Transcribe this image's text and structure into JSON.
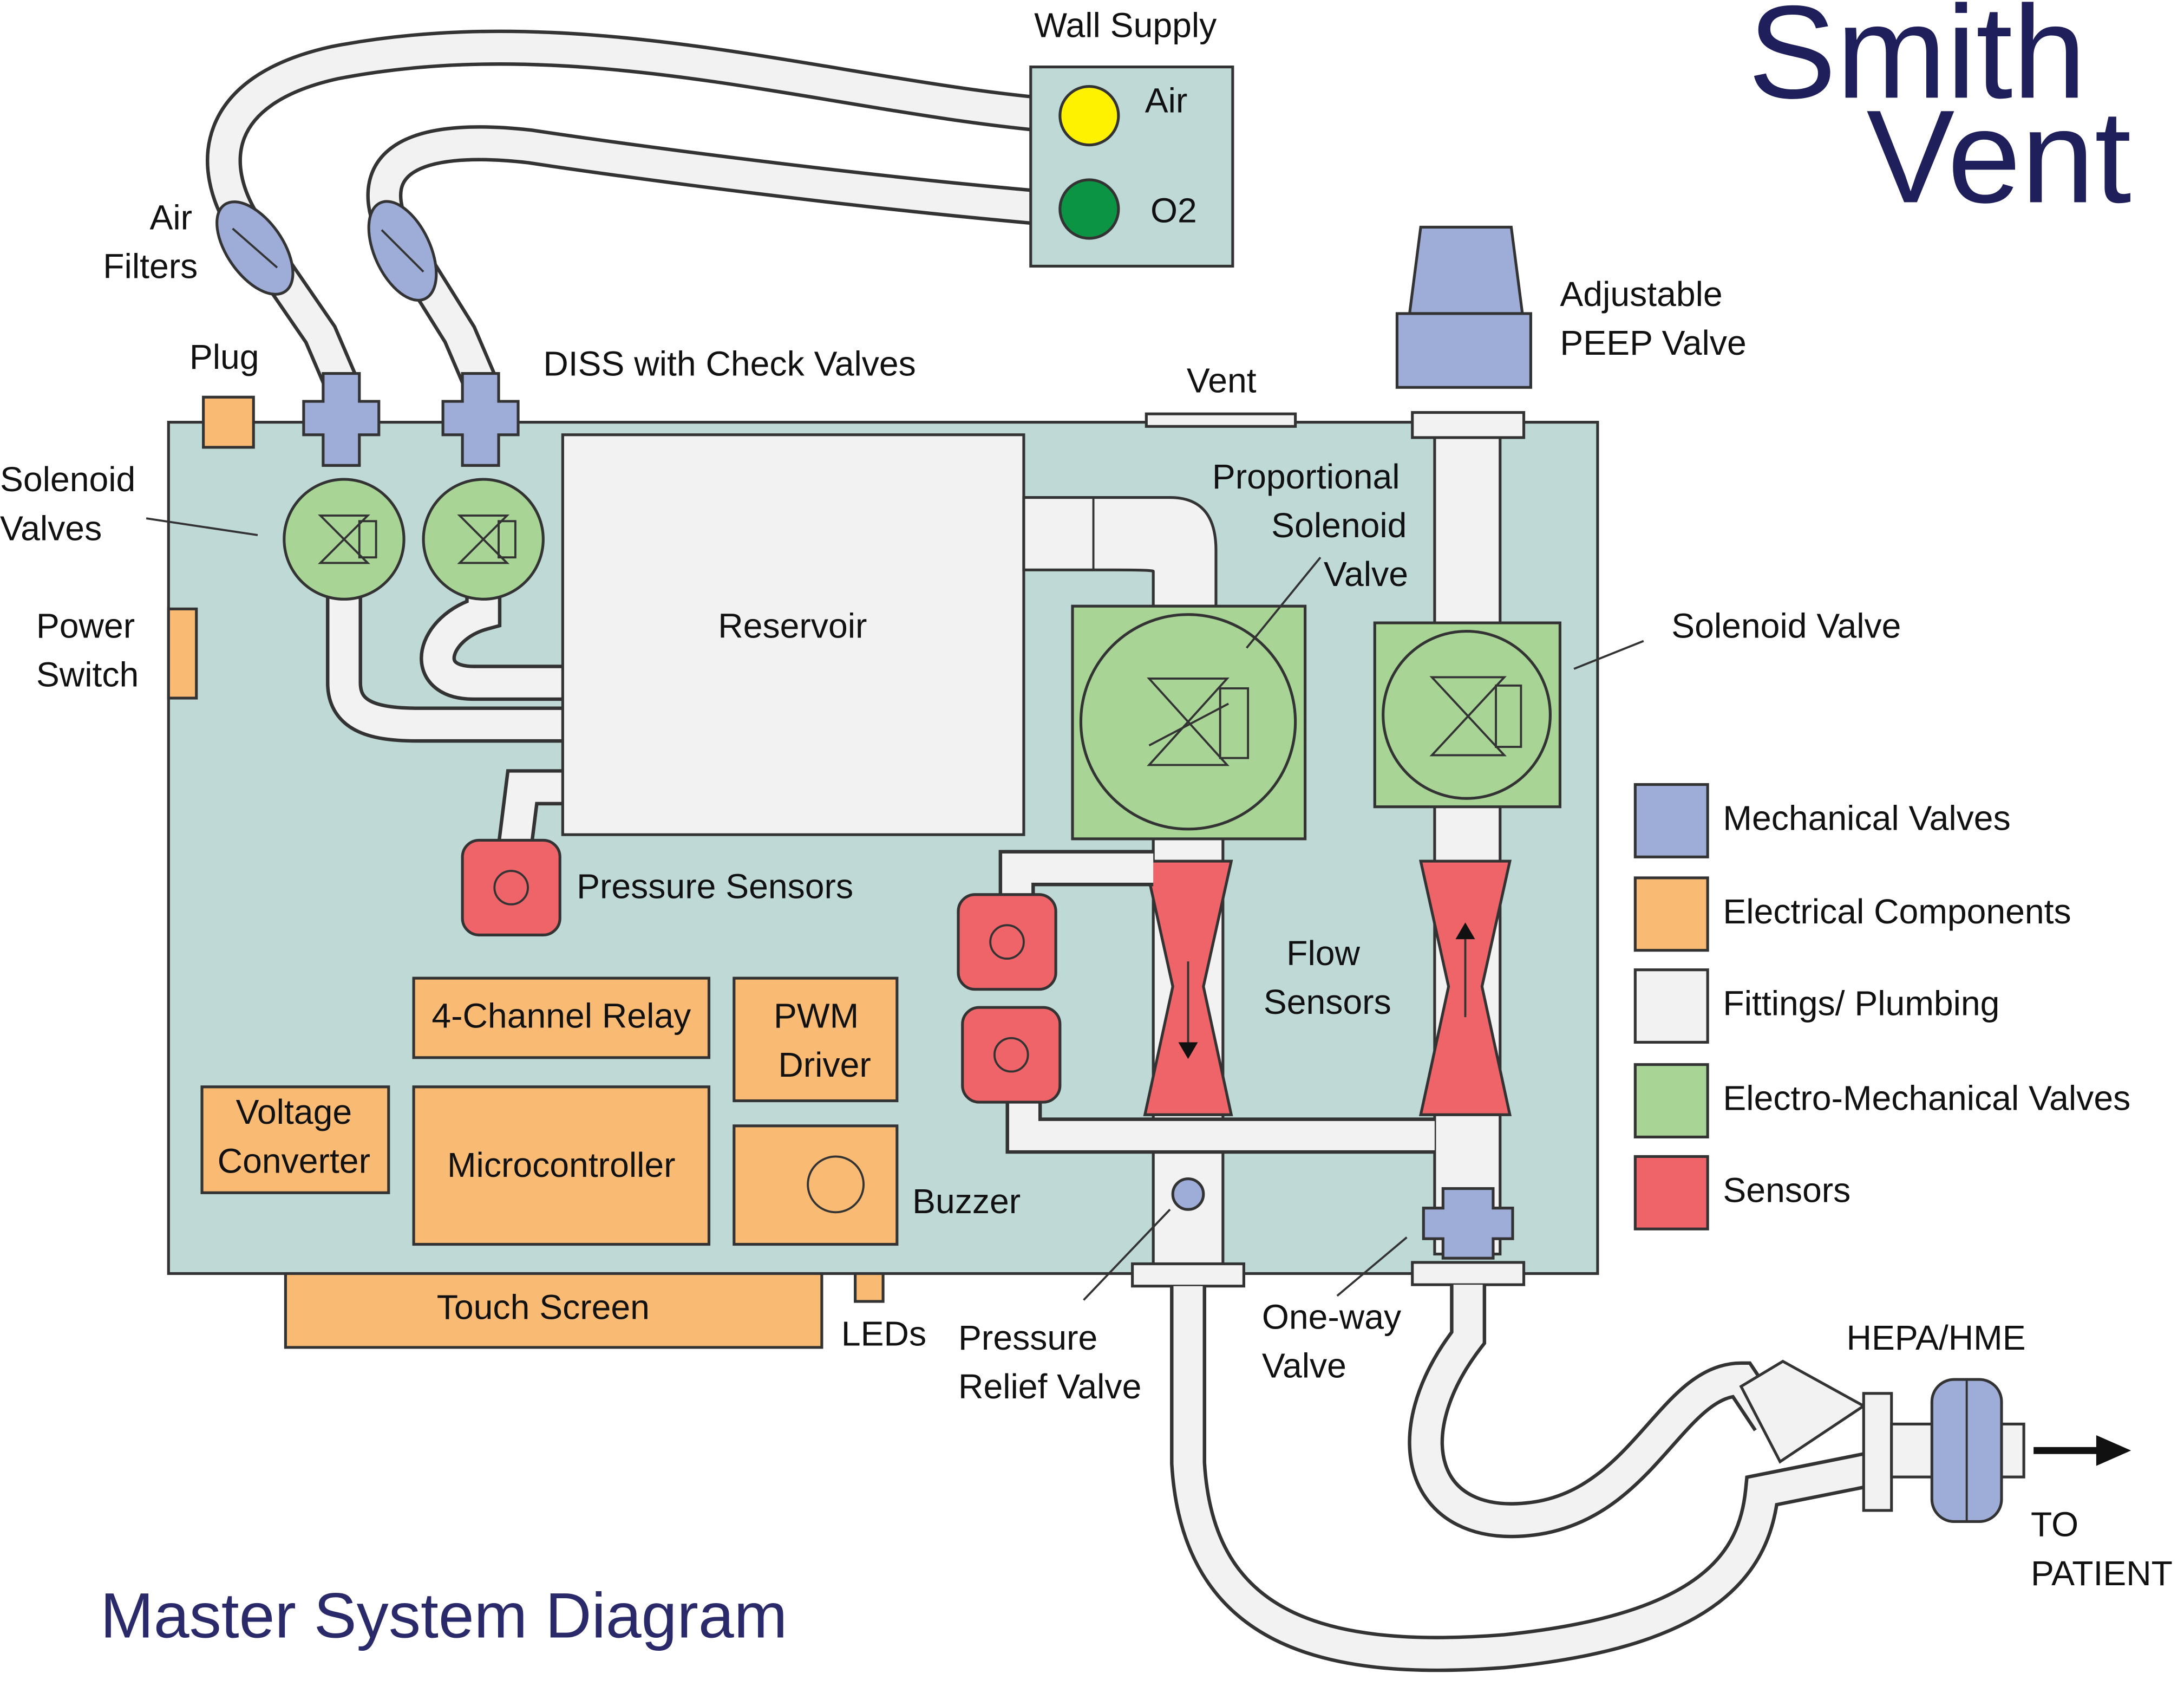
{
  "logo": [
    "Smith",
    "Vent"
  ],
  "title": "Master System Diagram",
  "wall_supply": {
    "title": "Wall Supply",
    "air": "Air",
    "o2": "O2"
  },
  "labels": {
    "air_filters": [
      "Air",
      "Filters"
    ],
    "plug": "Plug",
    "diss": "DISS with Check Valves",
    "vent": "Vent",
    "peep": [
      "Adjustable",
      "PEEP Valve"
    ],
    "solenoid_valves": [
      "Solenoid",
      "Valves"
    ],
    "power_switch": [
      "Power",
      "Switch"
    ],
    "reservoir": "Reservoir",
    "proportional": [
      "Proportional",
      "Solenoid",
      "Valve"
    ],
    "solenoid_valve": "Solenoid Valve",
    "pressure_sensors": "Pressure Sensors",
    "flow_sensors": [
      "Flow",
      "Sensors"
    ],
    "relay": "4-Channel Relay",
    "pwm": [
      "PWM",
      "Driver"
    ],
    "voltage": [
      "Voltage",
      "Converter"
    ],
    "micro": "Microcontroller",
    "buzzer": "Buzzer",
    "touch": "Touch Screen",
    "leds": "LEDs",
    "relief": [
      "Pressure",
      "Relief Valve"
    ],
    "oneway": [
      "One-way",
      "Valve"
    ],
    "hepa": "HEPA/HME",
    "patient": [
      "TO",
      "PATIENT"
    ]
  },
  "legend": [
    {
      "label": "Mechanical Valves",
      "color": "#9eacd8"
    },
    {
      "label": "Electrical Components",
      "color": "#f9bb74"
    },
    {
      "label": "Fittings/ Plumbing",
      "color": "#f2f2f2"
    },
    {
      "label": "Electro-Mechanical Valves",
      "color": "#a8d596"
    },
    {
      "label": "Sensors",
      "color": "#ef6468"
    }
  ]
}
